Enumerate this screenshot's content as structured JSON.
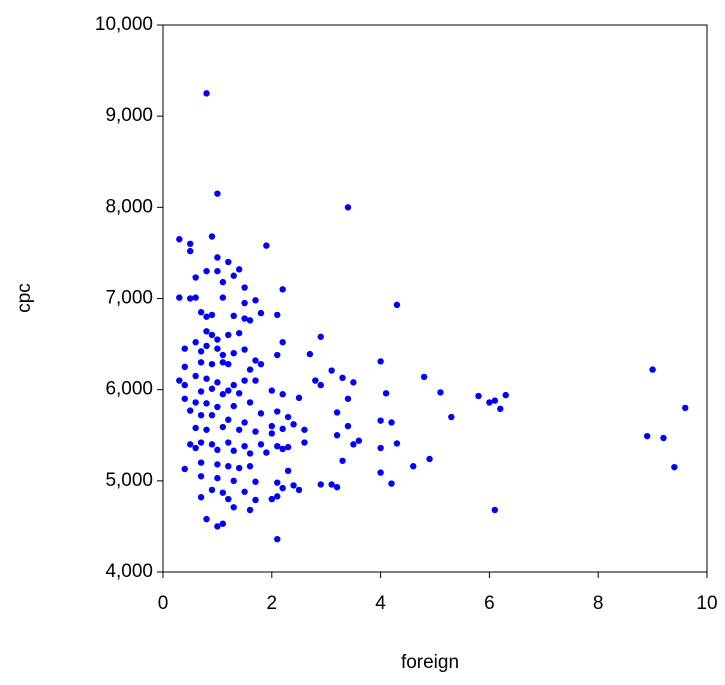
{
  "chart_data": {
    "type": "scatter",
    "x_label": "foreign",
    "y_label": "cpc",
    "color": "#0000ff",
    "xlim": [
      0,
      10
    ],
    "ylim": [
      4000,
      10000
    ],
    "xticks": [
      0,
      2,
      4,
      6,
      8,
      10
    ],
    "yticks": [
      {
        "value": 4000,
        "label": "4,000"
      },
      {
        "value": 5000,
        "label": "5,000"
      },
      {
        "value": 6000,
        "label": "6,000"
      },
      {
        "value": 7000,
        "label": "7,000"
      },
      {
        "value": 8000,
        "label": "8,000"
      },
      {
        "value": 9000,
        "label": "9,000"
      },
      {
        "value": 10000,
        "label": "10,000"
      }
    ],
    "x": [
      0.8,
      1.0,
      3.4,
      0.3,
      0.5,
      0.9,
      1.9,
      0.5,
      1.0,
      1.2,
      1.4,
      0.8,
      0.6,
      1.0,
      1.3,
      1.1,
      2.2,
      1.5,
      0.3,
      0.5,
      0.6,
      1.7,
      1.1,
      1.5,
      2.1,
      4.3,
      0.7,
      0.8,
      0.9,
      1.3,
      1.5,
      1.6,
      1.8,
      2.9,
      0.8,
      0.9,
      1.0,
      1.2,
      1.4,
      2.2,
      0.4,
      0.6,
      0.7,
      0.8,
      1.0,
      1.1,
      1.3,
      1.5,
      1.7,
      2.1,
      2.7,
      0.4,
      0.7,
      0.9,
      1.1,
      1.2,
      1.6,
      1.8,
      3.1,
      4.0,
      0.3,
      0.6,
      0.8,
      1.0,
      1.3,
      1.5,
      1.7,
      2.8,
      2.9,
      3.3,
      3.5,
      4.8,
      9.0,
      0.4,
      0.7,
      0.9,
      1.1,
      1.2,
      1.4,
      2.0,
      2.2,
      2.5,
      3.4,
      4.1,
      5.1,
      5.8,
      6.0,
      6.1,
      6.2,
      6.3,
      9.6,
      0.4,
      0.6,
      0.8,
      1.0,
      1.3,
      1.6,
      1.8,
      2.1,
      2.3,
      3.2,
      5.3,
      0.5,
      0.7,
      0.9,
      1.2,
      1.5,
      2.0,
      2.4,
      3.4,
      4.0,
      4.2,
      0.6,
      0.8,
      1.1,
      1.4,
      1.7,
      2.0,
      2.2,
      2.6,
      3.2,
      8.9,
      9.2,
      0.5,
      0.7,
      0.9,
      1.2,
      1.5,
      1.8,
      2.1,
      2.3,
      2.6,
      3.5,
      3.6,
      4.0,
      4.3,
      0.6,
      1.0,
      1.3,
      1.6,
      1.9,
      2.2,
      3.3,
      4.9,
      0.4,
      0.7,
      1.0,
      1.2,
      1.4,
      1.6,
      2.3,
      4.0,
      4.6,
      9.4,
      0.7,
      1.0,
      1.3,
      1.7,
      2.1,
      2.4,
      2.9,
      3.1,
      3.2,
      4.2,
      0.9,
      1.1,
      1.5,
      2.2,
      2.5,
      0.7,
      1.2,
      1.7,
      2.0,
      2.1,
      1.3,
      1.6,
      6.1,
      0.8,
      1.0,
      1.1,
      2.1
    ],
    "y": [
      9250,
      8150,
      8000,
      7650,
      7600,
      7680,
      7580,
      7520,
      7450,
      7400,
      7320,
      7300,
      7230,
      7300,
      7250,
      7180,
      7100,
      7120,
      7010,
      7000,
      7010,
      6980,
      7010,
      6950,
      6820,
      6930,
      6850,
      6800,
      6820,
      6810,
      6780,
      6760,
      6840,
      6580,
      6640,
      6600,
      6550,
      6600,
      6620,
      6520,
      6450,
      6520,
      6420,
      6480,
      6450,
      6380,
      6400,
      6440,
      6320,
      6380,
      6390,
      6250,
      6300,
      6280,
      6300,
      6280,
      6220,
      6280,
      6210,
      6310,
      6100,
      6150,
      6120,
      6080,
      6050,
      6100,
      6100,
      6100,
      6050,
      6130,
      6080,
      6140,
      6220,
      6050,
      5980,
      6010,
      5950,
      5990,
      5960,
      5990,
      5950,
      5910,
      5900,
      5960,
      5970,
      5930,
      5860,
      5880,
      5790,
      5940,
      5800,
      5900,
      5860,
      5850,
      5810,
      5820,
      5860,
      5740,
      5760,
      5700,
      5750,
      5700,
      5770,
      5720,
      5720,
      5670,
      5640,
      5600,
      5620,
      5600,
      5660,
      5640,
      5580,
      5560,
      5590,
      5560,
      5540,
      5520,
      5570,
      5560,
      5500,
      5490,
      5470,
      5400,
      5420,
      5400,
      5420,
      5380,
      5400,
      5380,
      5370,
      5420,
      5400,
      5440,
      5360,
      5410,
      5360,
      5340,
      5330,
      5300,
      5310,
      5350,
      5220,
      5240,
      5130,
      5200,
      5180,
      5160,
      5140,
      5160,
      5110,
      5090,
      5160,
      5150,
      5050,
      5030,
      5000,
      4990,
      4980,
      4950,
      4960,
      4960,
      4930,
      4970,
      4900,
      4870,
      4880,
      4920,
      4900,
      4820,
      4800,
      4790,
      4800,
      4830,
      4710,
      4680,
      4680,
      4580,
      4500,
      4530,
      4360
    ]
  }
}
